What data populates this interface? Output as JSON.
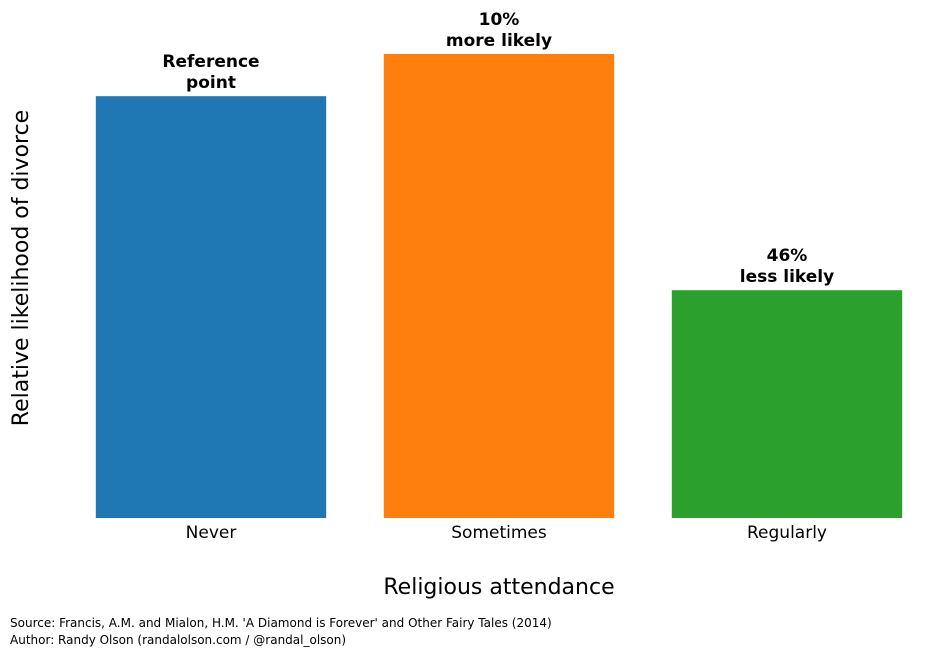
{
  "chart_data": {
    "type": "bar",
    "title": "",
    "xlabel": "Religious attendance",
    "ylabel": "Relative likelihood of divorce",
    "categories": [
      "Never",
      "Sometimes",
      "Regularly"
    ],
    "values": [
      1.0,
      1.1,
      0.54
    ],
    "ylim": [
      0,
      1.1
    ],
    "colors": [
      "#1f77b4",
      "#ff7f0e",
      "#2ca02c"
    ],
    "annotations": [
      [
        "Reference",
        "point"
      ],
      [
        "10%",
        "more likely"
      ],
      [
        "46%",
        "less likely"
      ]
    ],
    "grid": false,
    "yticks_visible": false
  },
  "footer": {
    "source": "Source: Francis, A.M. and Mialon, H.M. 'A Diamond is Forever' and Other Fairy Tales (2014)",
    "author": "Author: Randy Olson (randalolson.com / @randal_olson)"
  }
}
